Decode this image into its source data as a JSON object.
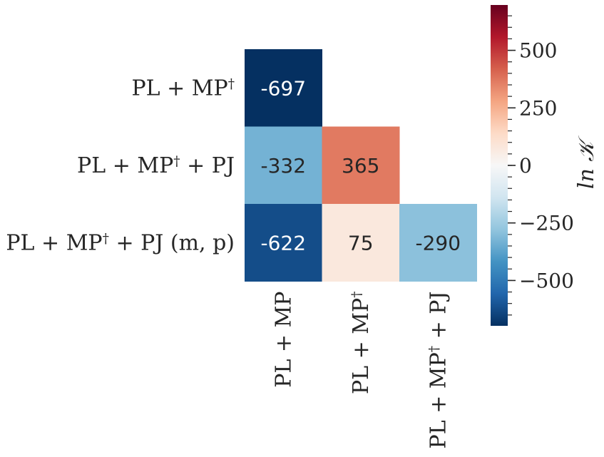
{
  "chart_data": {
    "type": "heatmap",
    "rows": [
      "PL + MP†",
      "PL + MP† + PJ",
      "PL + MP† + PJ (m, p)"
    ],
    "columns": [
      "PL + MP",
      "PL + MP†",
      "PL + MP† + PJ"
    ],
    "values": [
      [
        -697,
        null,
        null
      ],
      [
        -332,
        365,
        null
      ],
      [
        -622,
        75,
        -290
      ]
    ],
    "annotations": [
      [
        "-697",
        "",
        ""
      ],
      [
        "-332",
        "365",
        ""
      ],
      [
        "-622",
        "75",
        "-290"
      ]
    ],
    "mask": "upper triangle",
    "colormap": "RdBu_r",
    "color_range": [
      -697,
      697
    ],
    "colorbar": {
      "label": "ln 𝒦",
      "ticks": [
        500,
        250,
        0,
        -250,
        -500
      ],
      "tick_labels": [
        "500",
        "250",
        "0",
        "−250",
        "−500"
      ]
    }
  }
}
